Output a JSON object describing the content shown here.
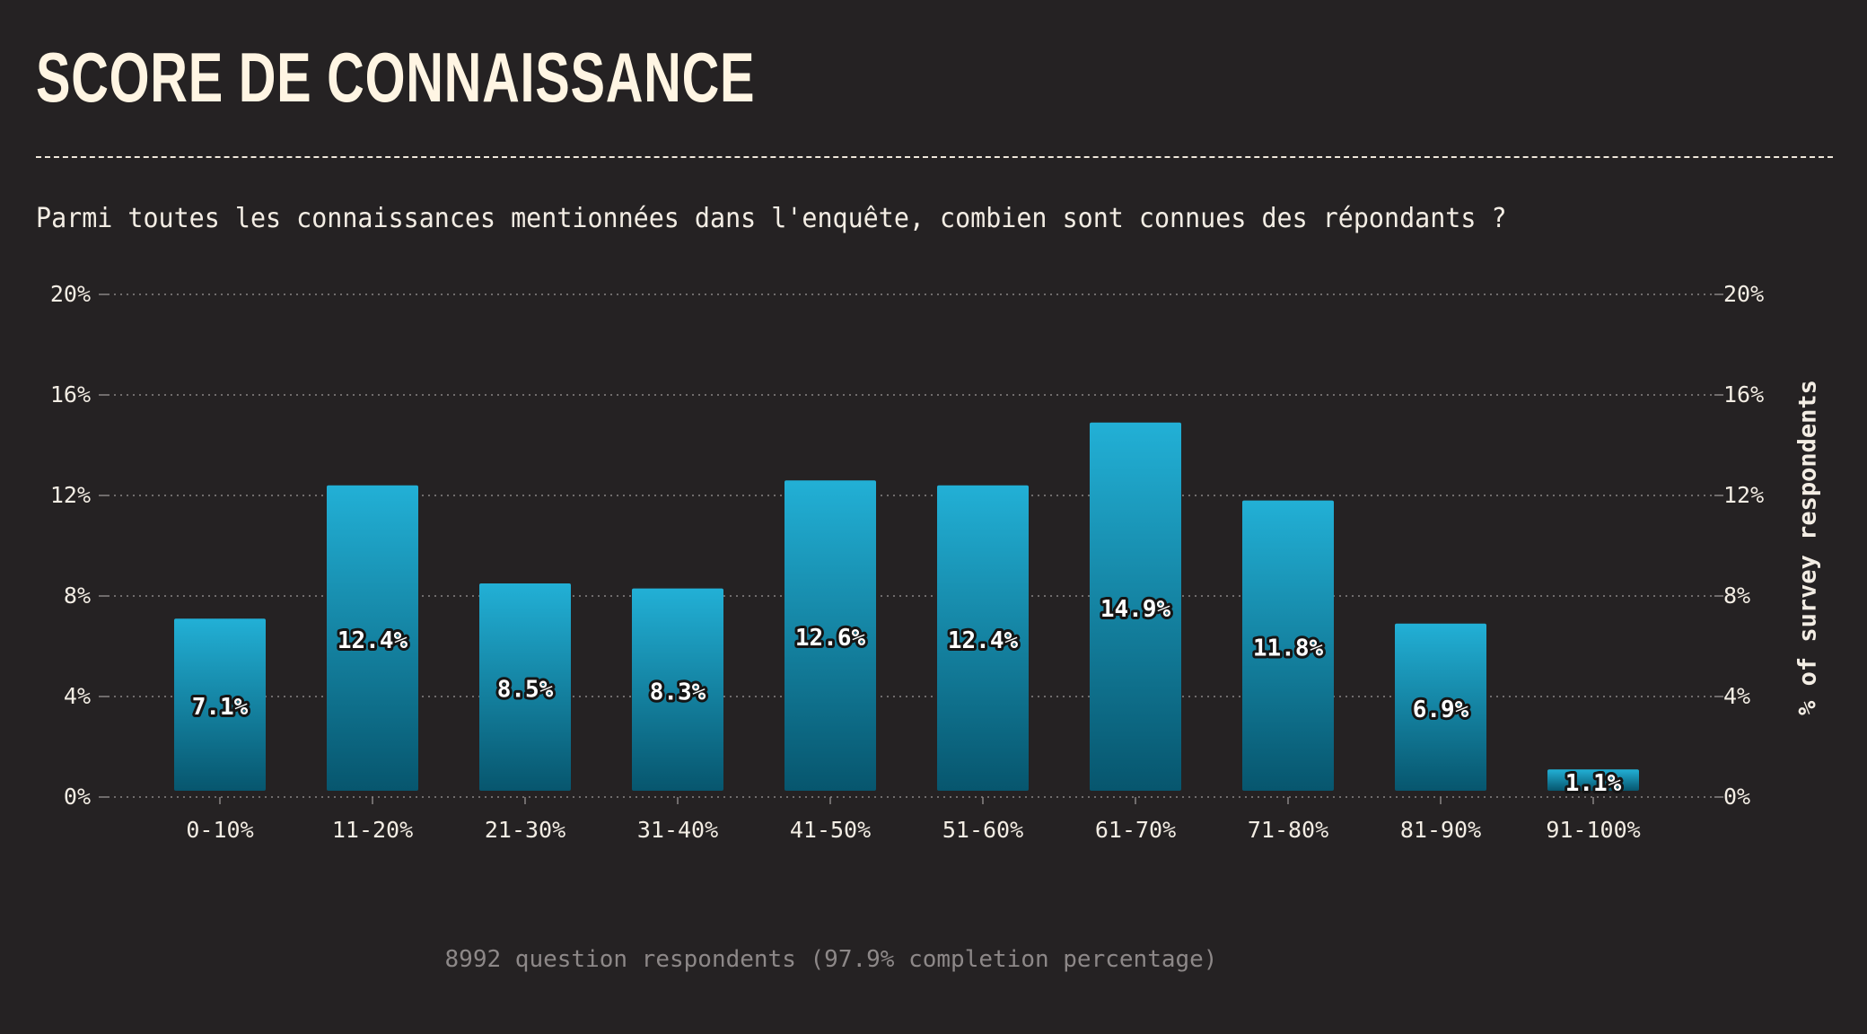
{
  "title": "SCORE DE CONNAISSANCE",
  "subtitle": "Parmi toutes les connaissances mentionnées dans l'enquête, combien sont connues des répondants ?",
  "footer": "8992 question respondents (97.9% completion percentage)",
  "colors": {
    "background": "#252223",
    "bar_top": "#22b0d6",
    "bar_bottom": "#07566e",
    "text": "#f3ede4",
    "grid": "#8a8585"
  },
  "chart_data": {
    "type": "bar",
    "categories": [
      "0-10%",
      "11-20%",
      "21-30%",
      "31-40%",
      "41-50%",
      "51-60%",
      "61-70%",
      "71-80%",
      "81-90%",
      "91-100%"
    ],
    "values": [
      7.1,
      12.4,
      8.5,
      8.3,
      12.6,
      12.4,
      14.9,
      11.8,
      6.9,
      1.1
    ],
    "data_labels": [
      "7.1%",
      "12.4%",
      "8.5%",
      "8.3%",
      "12.6%",
      "12.4%",
      "14.9%",
      "11.8%",
      "6.9%",
      "1.1%"
    ],
    "ylim": [
      0,
      20
    ],
    "yticks": [
      0,
      4,
      8,
      12,
      16,
      20
    ],
    "ytick_labels": [
      "0%",
      "4%",
      "8%",
      "12%",
      "16%",
      "20%"
    ],
    "ylabel_right": "% of survey respondents",
    "xlabel": "",
    "grid": true,
    "legend": false
  }
}
